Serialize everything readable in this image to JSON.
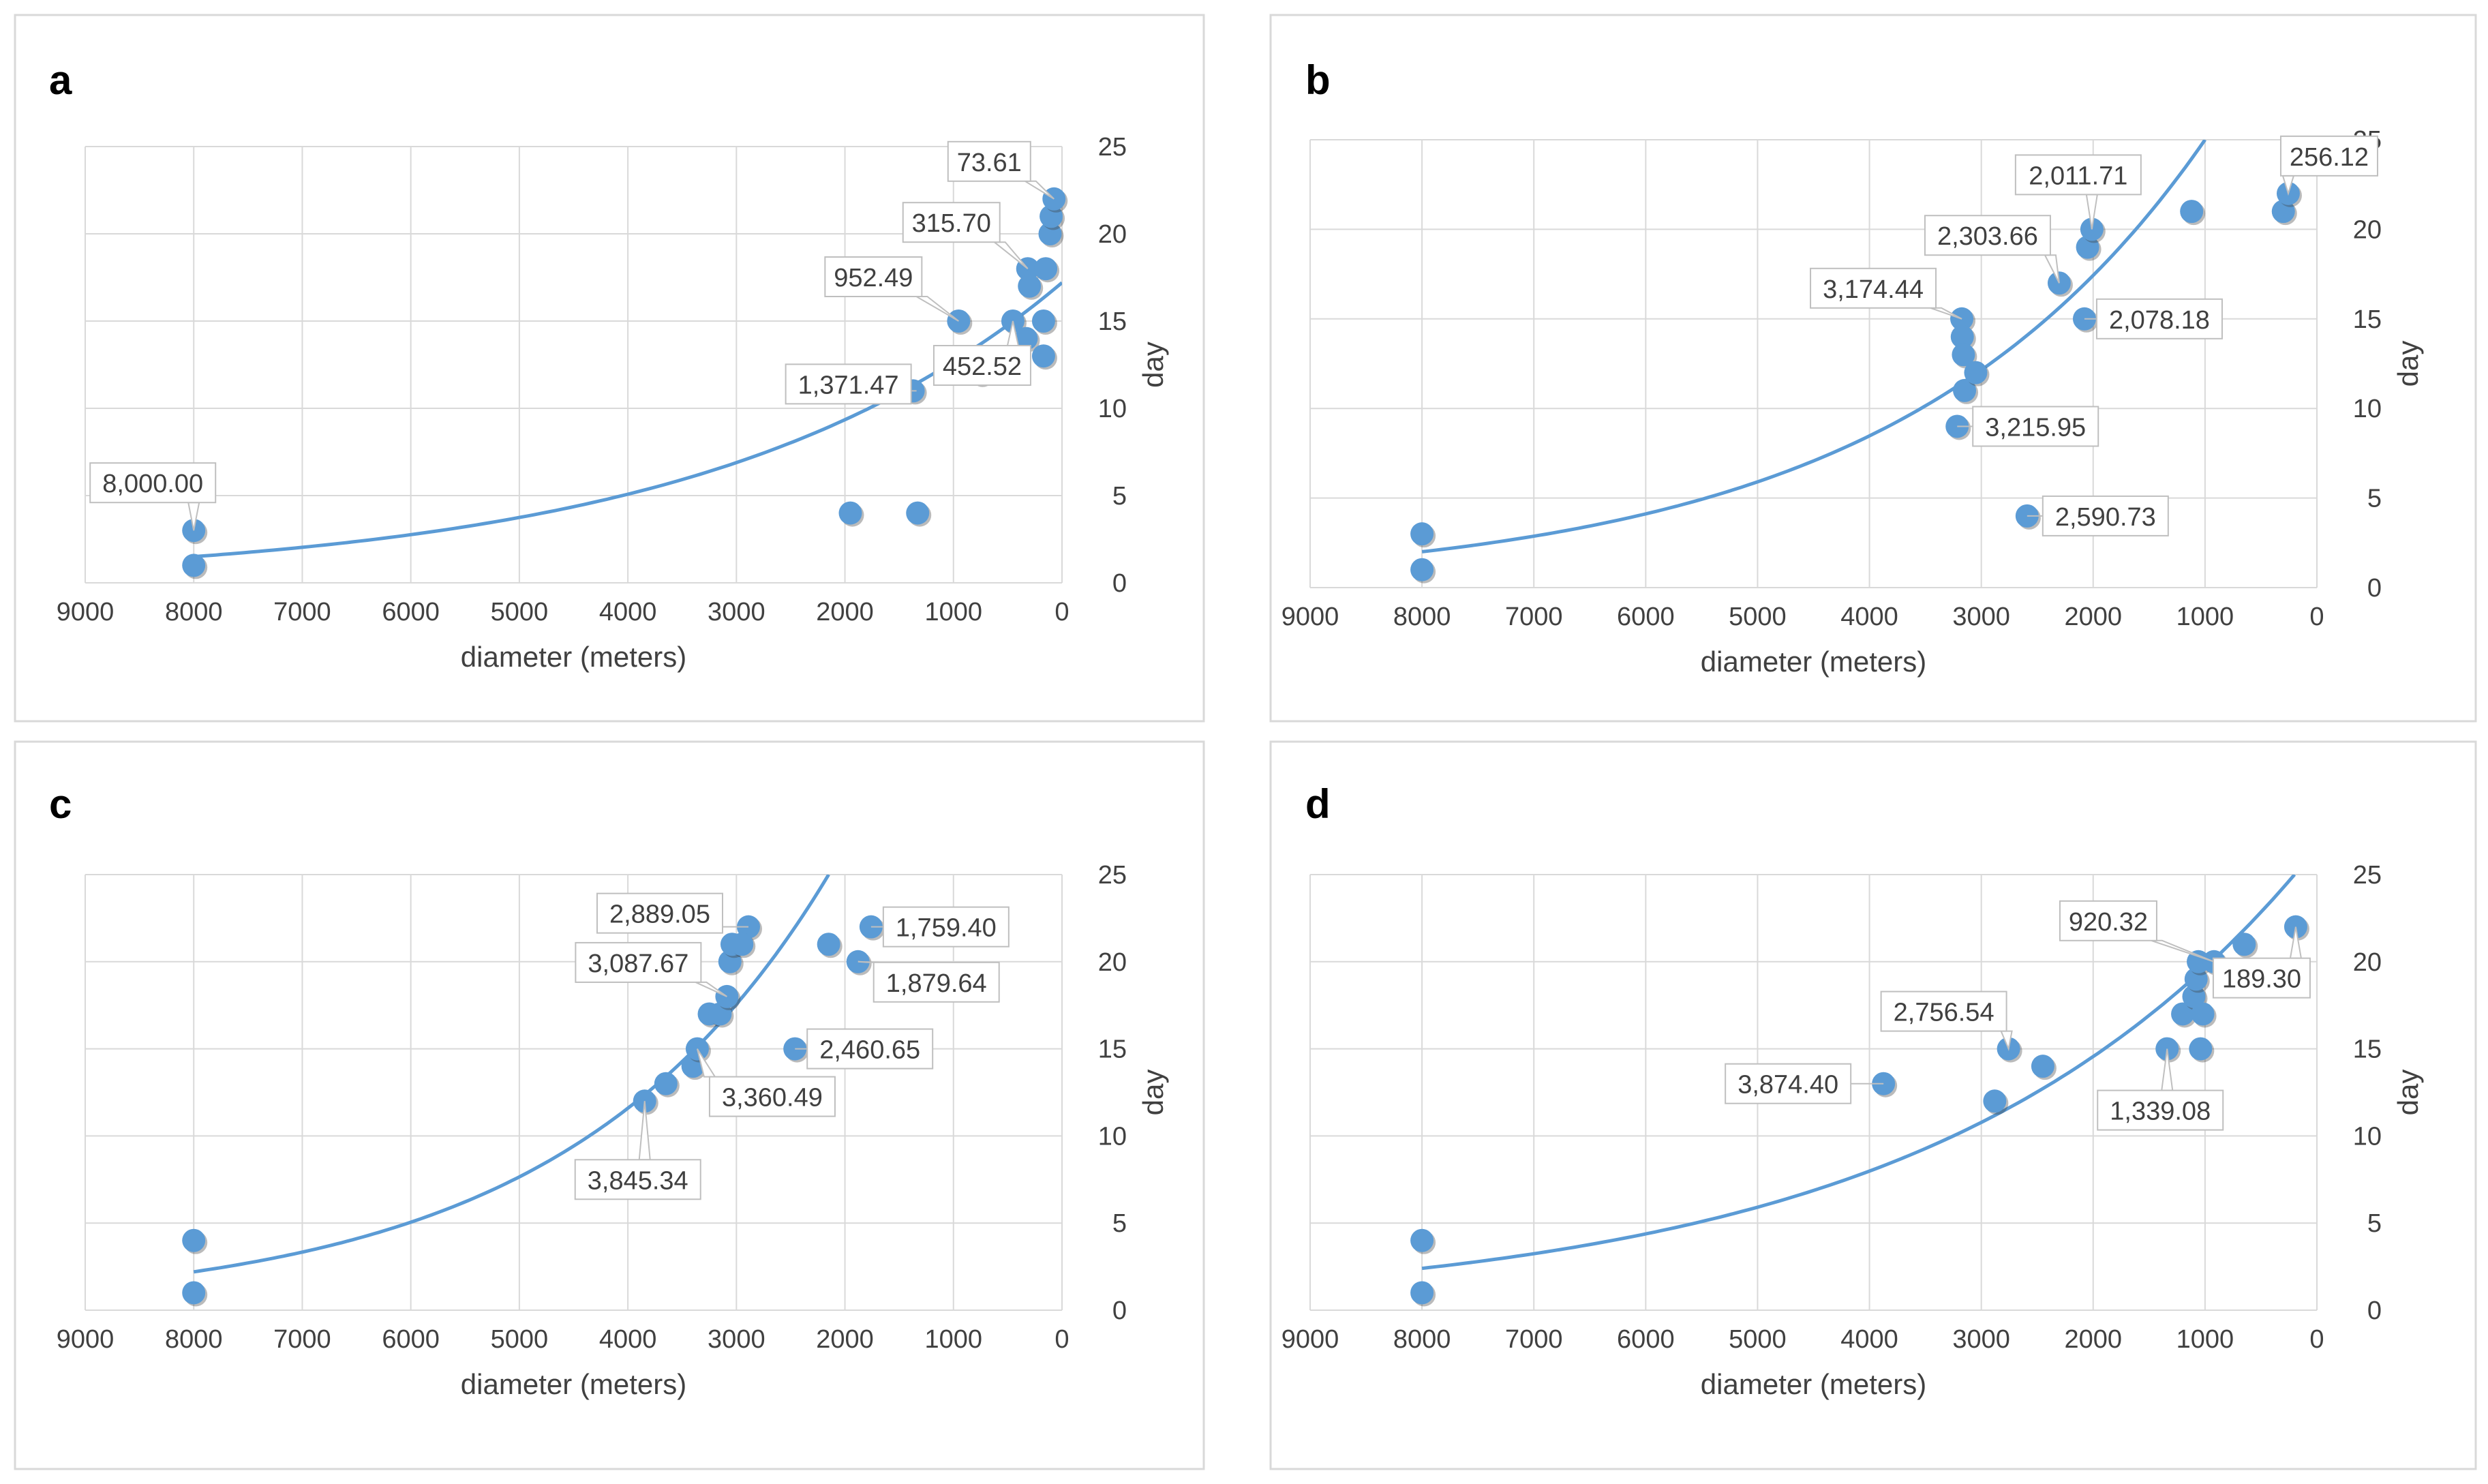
{
  "panels": [
    {
      "letter": "a",
      "xlabel": "diameter (meters)",
      "ylabel": "day"
    },
    {
      "letter": "b",
      "xlabel": "diameter (meters)",
      "ylabel": "day"
    },
    {
      "letter": "c",
      "xlabel": "diameter (meters)",
      "ylabel": "day"
    },
    {
      "letter": "d",
      "xlabel": "diameter (meters)",
      "ylabel": "day"
    }
  ],
  "colors": {
    "point": "#5b9bd5",
    "trend": "#5b9bd5",
    "grid": "#d9d9d9",
    "text": "#404040",
    "frame": "#d9d9d9"
  },
  "chart_data": [
    {
      "type": "scatter",
      "title": "a",
      "xlabel": "diameter (meters)",
      "ylabel": "day",
      "xlim": [
        9000,
        0
      ],
      "x_reversed": true,
      "ylim": [
        0,
        25
      ],
      "x_ticks": [
        9000,
        8000,
        7000,
        6000,
        5000,
        4000,
        3000,
        2000,
        1000,
        0
      ],
      "y_ticks": [
        0,
        5,
        10,
        15,
        20,
        25
      ],
      "grid": true,
      "points": [
        {
          "x": 8000,
          "y": 3
        },
        {
          "x": 8000,
          "y": 1
        },
        {
          "x": 1950,
          "y": 4
        },
        {
          "x": 1330,
          "y": 4
        },
        {
          "x": 1371.47,
          "y": 11
        },
        {
          "x": 952.49,
          "y": 15
        },
        {
          "x": 750,
          "y": 12
        },
        {
          "x": 452.52,
          "y": 15
        },
        {
          "x": 330,
          "y": 14
        },
        {
          "x": 315.7,
          "y": 18
        },
        {
          "x": 300,
          "y": 17
        },
        {
          "x": 170,
          "y": 15
        },
        {
          "x": 170,
          "y": 13
        },
        {
          "x": 150,
          "y": 18
        },
        {
          "x": 110,
          "y": 20
        },
        {
          "x": 100,
          "y": 21
        },
        {
          "x": 73.61,
          "y": 22
        }
      ],
      "trendline": {
        "type": "exponential",
        "start": [
          8000,
          1.5
        ],
        "end": [
          0,
          17.2
        ]
      },
      "annotations": [
        {
          "text": "8,000.00",
          "x": 8000,
          "y": 3
        },
        {
          "text": "1,371.47",
          "x": 1371.47,
          "y": 11
        },
        {
          "text": "952.49",
          "x": 952.49,
          "y": 15
        },
        {
          "text": "452.52",
          "x": 452.52,
          "y": 15
        },
        {
          "text": "315.70",
          "x": 315.7,
          "y": 18
        },
        {
          "text": "73.61",
          "x": 73.61,
          "y": 22
        }
      ]
    },
    {
      "type": "scatter",
      "title": "b",
      "xlabel": "diameter (meters)",
      "ylabel": "day",
      "xlim": [
        9000,
        0
      ],
      "x_reversed": true,
      "ylim": [
        0,
        25
      ],
      "x_ticks": [
        9000,
        8000,
        7000,
        6000,
        5000,
        4000,
        3000,
        2000,
        1000,
        0
      ],
      "y_ticks": [
        0,
        5,
        10,
        15,
        20,
        25
      ],
      "grid": true,
      "points": [
        {
          "x": 8000,
          "y": 3
        },
        {
          "x": 8000,
          "y": 1
        },
        {
          "x": 3215.95,
          "y": 9
        },
        {
          "x": 3174.44,
          "y": 15
        },
        {
          "x": 3170,
          "y": 14
        },
        {
          "x": 3160,
          "y": 13
        },
        {
          "x": 3150,
          "y": 11
        },
        {
          "x": 3050,
          "y": 12
        },
        {
          "x": 2590.73,
          "y": 4
        },
        {
          "x": 2303.66,
          "y": 17
        },
        {
          "x": 2078.18,
          "y": 15
        },
        {
          "x": 2050,
          "y": 19
        },
        {
          "x": 2011.71,
          "y": 20
        },
        {
          "x": 1120,
          "y": 21
        },
        {
          "x": 300,
          "y": 21
        },
        {
          "x": 256.12,
          "y": 22
        }
      ],
      "trendline": {
        "type": "exponential",
        "start": [
          8000,
          2.0
        ],
        "end": [
          1000,
          25
        ]
      },
      "annotations": [
        {
          "text": "256.12",
          "x": 256.12,
          "y": 22
        },
        {
          "text": "2,011.71",
          "x": 2011.71,
          "y": 20
        },
        {
          "text": "2,303.66",
          "x": 2303.66,
          "y": 17
        },
        {
          "text": "3,174.44",
          "x": 3174.44,
          "y": 15
        },
        {
          "text": "2,078.18",
          "x": 2078.18,
          "y": 15
        },
        {
          "text": "3,215.95",
          "x": 3215.95,
          "y": 9
        },
        {
          "text": "2,590.73",
          "x": 2590.73,
          "y": 4
        }
      ]
    },
    {
      "type": "scatter",
      "title": "c",
      "xlabel": "diameter (meters)",
      "ylabel": "day",
      "xlim": [
        9000,
        0
      ],
      "x_reversed": true,
      "ylim": [
        0,
        25
      ],
      "x_ticks": [
        9000,
        8000,
        7000,
        6000,
        5000,
        4000,
        3000,
        2000,
        1000,
        0
      ],
      "y_ticks": [
        0,
        5,
        10,
        15,
        20,
        25
      ],
      "grid": true,
      "points": [
        {
          "x": 8000,
          "y": 4
        },
        {
          "x": 8000,
          "y": 1
        },
        {
          "x": 3845.34,
          "y": 12
        },
        {
          "x": 3650,
          "y": 13
        },
        {
          "x": 3400,
          "y": 14
        },
        {
          "x": 3360.49,
          "y": 15
        },
        {
          "x": 3250,
          "y": 17
        },
        {
          "x": 3150,
          "y": 17
        },
        {
          "x": 3087.67,
          "y": 18
        },
        {
          "x": 3060,
          "y": 20
        },
        {
          "x": 3040,
          "y": 21
        },
        {
          "x": 2889.05,
          "y": 22
        },
        {
          "x": 2950,
          "y": 21
        },
        {
          "x": 2460.65,
          "y": 15
        },
        {
          "x": 2150,
          "y": 21
        },
        {
          "x": 1879.64,
          "y": 20
        },
        {
          "x": 1759.4,
          "y": 22
        }
      ],
      "trendline": {
        "type": "exponential",
        "start": [
          8000,
          2.2
        ],
        "end": [
          2150,
          25
        ]
      },
      "annotations": [
        {
          "text": "2,889.05",
          "x": 2889.05,
          "y": 22
        },
        {
          "text": "1,759.40",
          "x": 1759.4,
          "y": 22
        },
        {
          "text": "3,087.67",
          "x": 3087.67,
          "y": 18
        },
        {
          "text": "1,879.64",
          "x": 1879.64,
          "y": 20
        },
        {
          "text": "2,460.65",
          "x": 2460.65,
          "y": 15
        },
        {
          "text": "3,360.49",
          "x": 3360.49,
          "y": 15
        },
        {
          "text": "3,845.34",
          "x": 3845.34,
          "y": 12
        }
      ]
    },
    {
      "type": "scatter",
      "title": "d",
      "xlabel": "diameter (meters)",
      "ylabel": "day",
      "xlim": [
        9000,
        0
      ],
      "x_reversed": true,
      "ylim": [
        0,
        25
      ],
      "x_ticks": [
        9000,
        8000,
        7000,
        6000,
        5000,
        4000,
        3000,
        2000,
        1000,
        0
      ],
      "y_ticks": [
        0,
        5,
        10,
        15,
        20,
        25
      ],
      "grid": true,
      "points": [
        {
          "x": 8000,
          "y": 4
        },
        {
          "x": 8000,
          "y": 1
        },
        {
          "x": 3874.4,
          "y": 13
        },
        {
          "x": 2880,
          "y": 12
        },
        {
          "x": 2756.54,
          "y": 15
        },
        {
          "x": 2450,
          "y": 14
        },
        {
          "x": 1339.08,
          "y": 15
        },
        {
          "x": 1200,
          "y": 17
        },
        {
          "x": 1100,
          "y": 18
        },
        {
          "x": 1080,
          "y": 19
        },
        {
          "x": 1060,
          "y": 20
        },
        {
          "x": 1040,
          "y": 15
        },
        {
          "x": 1020,
          "y": 17
        },
        {
          "x": 920.32,
          "y": 20
        },
        {
          "x": 650,
          "y": 21
        },
        {
          "x": 189.3,
          "y": 22
        }
      ],
      "trendline": {
        "type": "exponential",
        "start": [
          8000,
          2.4
        ],
        "end": [
          200,
          25
        ]
      },
      "annotations": [
        {
          "text": "920.32",
          "x": 920.32,
          "y": 20
        },
        {
          "text": "189.30",
          "x": 189.3,
          "y": 22
        },
        {
          "text": "2,756.54",
          "x": 2756.54,
          "y": 15
        },
        {
          "text": "3,874.40",
          "x": 3874.4,
          "y": 13
        },
        {
          "text": "1,339.08",
          "x": 1339.08,
          "y": 15
        }
      ]
    }
  ]
}
